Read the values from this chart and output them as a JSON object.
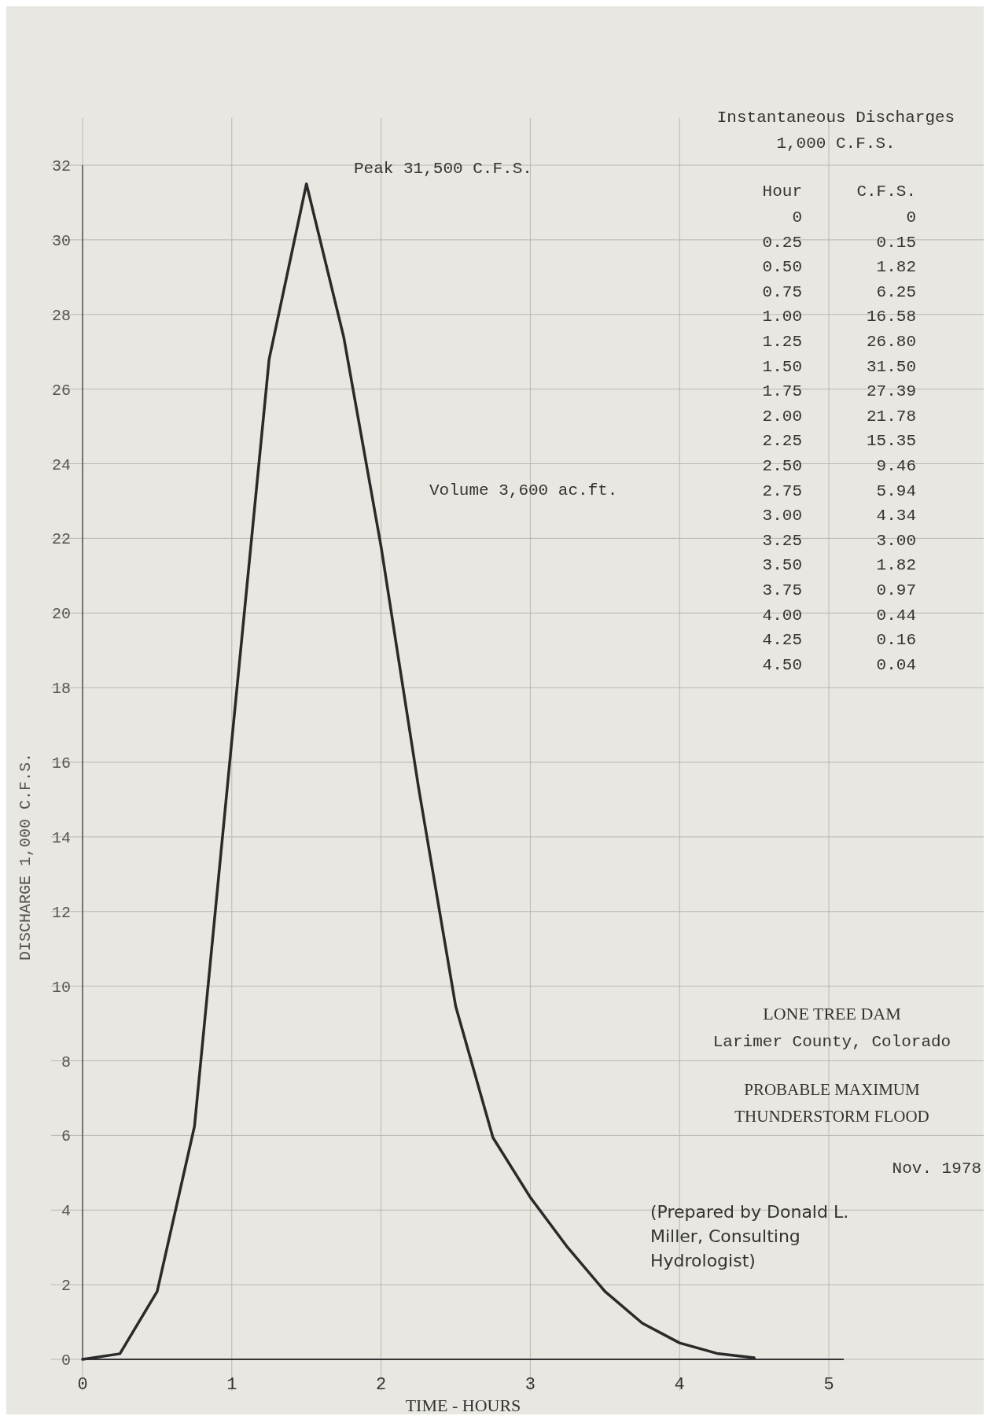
{
  "chart_data": {
    "type": "line",
    "title": "LONE TREE DAM",
    "subtitle": "Larimer County, Colorado",
    "xlabel": "TIME - HOURS",
    "ylabel": "DISCHARGE 1,000 C.F.S.",
    "x": [
      0,
      0.25,
      0.5,
      0.75,
      1,
      1.25,
      1.5,
      1.75,
      2,
      2.25,
      2.5,
      2.75,
      3,
      3.25,
      3.5,
      3.75,
      4,
      4.25,
      4.5
    ],
    "series": [
      {
        "color": "#2a2a2a",
        "values": [
          0,
          0.15,
          1.82,
          6.25,
          16.58,
          26.8,
          31.5,
          27.39,
          21.78,
          15.35,
          9.46,
          5.94,
          4.34,
          3,
          1.82,
          0.97,
          0.44,
          0.16,
          0.04
        ]
      }
    ],
    "xlim": [
      0,
      5.1
    ],
    "xticks": [
      0,
      1,
      2,
      3,
      4,
      5
    ],
    "ylim": [
      0,
      32
    ],
    "yticks": [
      0,
      2,
      4,
      6,
      8,
      10,
      12,
      14,
      16,
      18,
      20,
      22,
      24,
      26,
      28,
      30,
      32
    ],
    "grid": true,
    "marker": "none",
    "line_style": "solid",
    "annotations": [
      "Peak 31,500 C.F.S.",
      "Volume 3,600 ac.ft.",
      "PROBABLE MAXIMUM",
      "THUNDERSTORM FLOOD",
      "Nov. 1978",
      "(Prepared by Donald L. Miller, Consulting Hydrologist)",
      "Instantaneous Discharges",
      "1,000 C.F.S.",
      "Hour",
      "C.F.S.",
      "0",
      "0",
      "0.25",
      "0.15",
      "0.50",
      "1.82",
      "0.75",
      "6.25",
      "1.00",
      "16.58",
      "1.25",
      "26.80",
      "1.50",
      "31.50",
      "1.75",
      "27.39",
      "2.00",
      "21.78",
      "2.25",
      "15.35",
      "2.50",
      "9.46",
      "2.75",
      "5.94",
      "3.00",
      "4.34",
      "3.25",
      "3.00",
      "3.50",
      "1.82",
      "3.75",
      "0.97",
      "4.00",
      "0.44",
      "4.25",
      "0.16",
      "4.50",
      "0.04"
    ]
  }
}
